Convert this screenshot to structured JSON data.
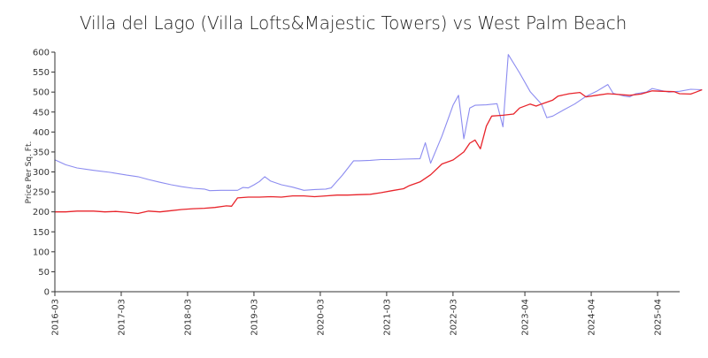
{
  "chart_data": {
    "type": "line",
    "title": "Villa del Lago (Villa Lofts&Majestic Towers) vs West Palm Beach",
    "xlabel": "",
    "ylabel": "Price Per Sq. Ft.",
    "x_ticks": [
      "2016-03",
      "2017-03",
      "2018-03",
      "2019-03",
      "2020-03",
      "2021-03",
      "2022-03",
      "2023-04",
      "2024-04",
      "2025-04"
    ],
    "x_tick_values": [
      2016.167,
      2017.167,
      2018.167,
      2019.167,
      2020.167,
      2021.167,
      2022.167,
      2023.25,
      2024.25,
      2025.25
    ],
    "xlim": [
      2016.167,
      2025.583
    ],
    "ylim": [
      0,
      600
    ],
    "y_ticks": [
      0,
      50,
      100,
      150,
      200,
      250,
      300,
      350,
      400,
      450,
      500,
      550,
      600
    ],
    "grid": false,
    "legend": "none",
    "series": [
      {
        "color": "#8c8cf0",
        "points": [
          [
            2016.17,
            330
          ],
          [
            2016.33,
            318
          ],
          [
            2016.5,
            310
          ],
          [
            2016.75,
            304
          ],
          [
            2017.0,
            299
          ],
          [
            2017.25,
            292
          ],
          [
            2017.42,
            288
          ],
          [
            2017.58,
            281
          ],
          [
            2017.75,
            274
          ],
          [
            2017.92,
            268
          ],
          [
            2018.08,
            263
          ],
          [
            2018.25,
            259
          ],
          [
            2018.42,
            257
          ],
          [
            2018.5,
            253
          ],
          [
            2018.67,
            254
          ],
          [
            2018.83,
            254
          ],
          [
            2018.92,
            254
          ],
          [
            2019.0,
            261
          ],
          [
            2019.08,
            260
          ],
          [
            2019.17,
            268
          ],
          [
            2019.25,
            276
          ],
          [
            2019.33,
            288
          ],
          [
            2019.42,
            277
          ],
          [
            2019.58,
            268
          ],
          [
            2019.75,
            262
          ],
          [
            2019.92,
            254
          ],
          [
            2020.08,
            256
          ],
          [
            2020.25,
            257
          ],
          [
            2020.33,
            260
          ],
          [
            2020.5,
            292
          ],
          [
            2020.67,
            328
          ],
          [
            2020.75,
            328
          ],
          [
            2020.92,
            329
          ],
          [
            2021.08,
            331
          ],
          [
            2021.25,
            331
          ],
          [
            2021.42,
            332
          ],
          [
            2021.67,
            333
          ],
          [
            2021.75,
            373
          ],
          [
            2021.83,
            322
          ],
          [
            2022.0,
            390
          ],
          [
            2022.17,
            468
          ],
          [
            2022.25,
            492
          ],
          [
            2022.33,
            383
          ],
          [
            2022.42,
            460
          ],
          [
            2022.5,
            467
          ],
          [
            2022.67,
            468
          ],
          [
            2022.83,
            471
          ],
          [
            2022.92,
            413
          ],
          [
            2023.0,
            594
          ],
          [
            2023.17,
            548
          ],
          [
            2023.33,
            501
          ],
          [
            2023.5,
            470
          ],
          [
            2023.58,
            436
          ],
          [
            2023.67,
            440
          ],
          [
            2023.83,
            455
          ],
          [
            2024.0,
            470
          ],
          [
            2024.17,
            489
          ],
          [
            2024.33,
            502
          ],
          [
            2024.5,
            519
          ],
          [
            2024.58,
            497
          ],
          [
            2024.75,
            490
          ],
          [
            2024.83,
            488
          ],
          [
            2024.92,
            496
          ],
          [
            2025.08,
            500
          ],
          [
            2025.17,
            509
          ],
          [
            2025.25,
            506
          ],
          [
            2025.42,
            500
          ],
          [
            2025.58,
            502
          ],
          [
            2025.75,
            507
          ],
          [
            2025.92,
            506
          ]
        ]
      },
      {
        "color": "#e8242b",
        "points": [
          [
            2016.17,
            200
          ],
          [
            2016.33,
            200
          ],
          [
            2016.5,
            202
          ],
          [
            2016.75,
            202
          ],
          [
            2016.92,
            200
          ],
          [
            2017.08,
            201
          ],
          [
            2017.25,
            199
          ],
          [
            2017.42,
            196
          ],
          [
            2017.58,
            202
          ],
          [
            2017.75,
            200
          ],
          [
            2017.92,
            203
          ],
          [
            2018.08,
            206
          ],
          [
            2018.25,
            208
          ],
          [
            2018.42,
            209
          ],
          [
            2018.58,
            211
          ],
          [
            2018.75,
            215
          ],
          [
            2018.83,
            214
          ],
          [
            2018.92,
            235
          ],
          [
            2019.08,
            237
          ],
          [
            2019.25,
            237
          ],
          [
            2019.42,
            238
          ],
          [
            2019.58,
            237
          ],
          [
            2019.75,
            240
          ],
          [
            2019.92,
            240
          ],
          [
            2020.08,
            238
          ],
          [
            2020.25,
            240
          ],
          [
            2020.42,
            242
          ],
          [
            2020.58,
            242
          ],
          [
            2020.75,
            243
          ],
          [
            2020.92,
            244
          ],
          [
            2021.08,
            248
          ],
          [
            2021.25,
            253
          ],
          [
            2021.42,
            258
          ],
          [
            2021.5,
            265
          ],
          [
            2021.67,
            275
          ],
          [
            2021.83,
            293
          ],
          [
            2022.0,
            320
          ],
          [
            2022.17,
            330
          ],
          [
            2022.33,
            350
          ],
          [
            2022.42,
            372
          ],
          [
            2022.5,
            380
          ],
          [
            2022.58,
            358
          ],
          [
            2022.67,
            415
          ],
          [
            2022.75,
            440
          ],
          [
            2022.92,
            442
          ],
          [
            2023.08,
            445
          ],
          [
            2023.17,
            460
          ],
          [
            2023.33,
            470
          ],
          [
            2023.42,
            465
          ],
          [
            2023.5,
            470
          ],
          [
            2023.67,
            480
          ],
          [
            2023.75,
            490
          ],
          [
            2023.92,
            496
          ],
          [
            2024.08,
            499
          ],
          [
            2024.17,
            488
          ],
          [
            2024.33,
            492
          ],
          [
            2024.5,
            496
          ],
          [
            2024.67,
            494
          ],
          [
            2024.83,
            492
          ],
          [
            2025.0,
            495
          ],
          [
            2025.17,
            503
          ],
          [
            2025.33,
            502
          ],
          [
            2025.5,
            501
          ],
          [
            2025.58,
            496
          ],
          [
            2025.75,
            495
          ],
          [
            2025.83,
            500
          ],
          [
            2025.92,
            506
          ]
        ]
      }
    ]
  }
}
